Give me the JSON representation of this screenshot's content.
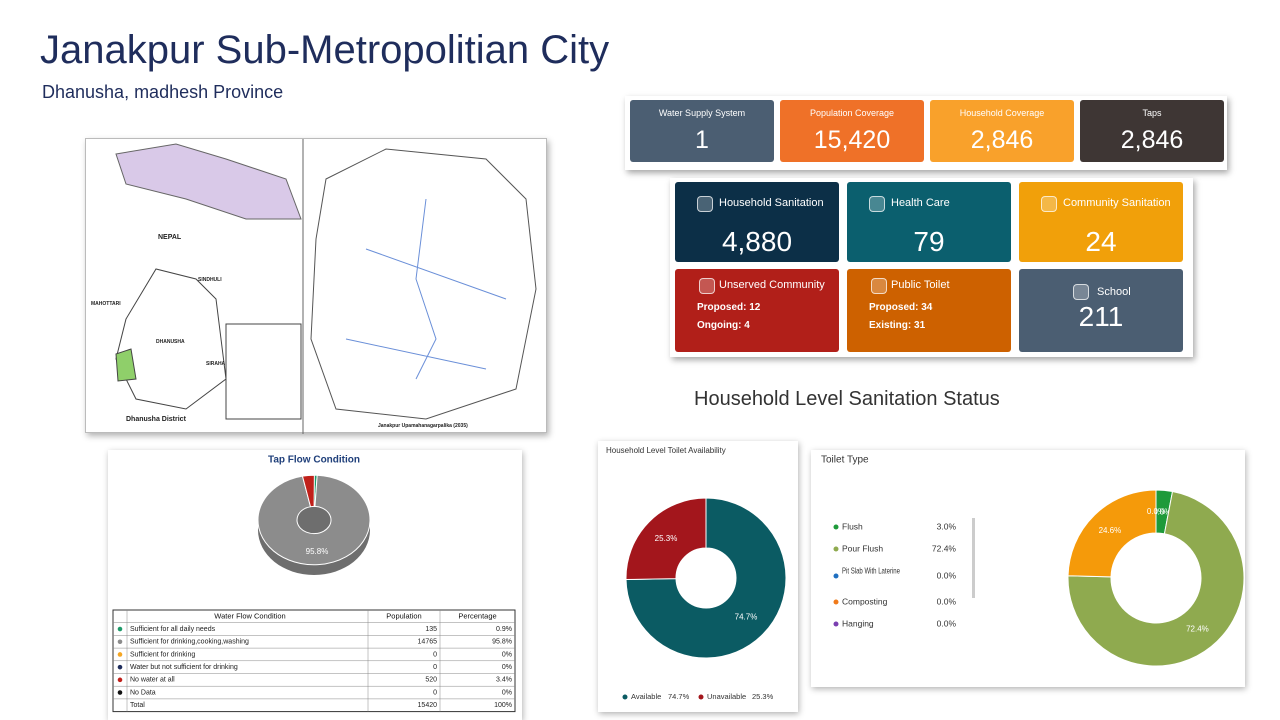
{
  "header": {
    "title": "Janakpur Sub-Metropolitian City",
    "subtitle": "Dhanusha, madhesh Province"
  },
  "water_cards": [
    {
      "label": "Water Supply System",
      "value": "1",
      "color": "#4b5e72"
    },
    {
      "label": "Population Coverage",
      "value": "15,420",
      "color": "#ef7128"
    },
    {
      "label": "Household Coverage",
      "value": "2,846",
      "color": "#f9a12b"
    },
    {
      "label": "Taps",
      "value": "2,846",
      "color": "#3e3634"
    }
  ],
  "sanitation_cards": [
    {
      "label": "Household Sanitation",
      "value": "4,880",
      "color": "#0c2f47"
    },
    {
      "label": "Health Care",
      "value": "79",
      "color": "#0b5f6e"
    },
    {
      "label": "Community Sanitation",
      "value": "24",
      "color": "#f1a00a"
    },
    {
      "label": "Unserved Community",
      "lines": [
        "Proposed: 12",
        "Ongoing: 4"
      ],
      "color": "#b11f19"
    },
    {
      "label": "Public Toilet",
      "lines": [
        "Proposed: 34",
        "Existing: 31"
      ],
      "color": "#cd6100"
    },
    {
      "label": "School",
      "value": "211",
      "color": "#4b5e72"
    }
  ],
  "section_title": "Household Level Sanitation Status",
  "map": {
    "labels": [
      "NEPAL",
      "SINDHULI",
      "MAHOTTARI",
      "DHANUSHA",
      "SIRAHA",
      "Dhanusha District",
      "Janakpur Upamahanagarpalika (2035)"
    ]
  },
  "tap_flow": {
    "title": "Tap Flow Condition",
    "slices": [
      {
        "value": 0.9,
        "color": "#1e9a6a"
      },
      {
        "value": 95.8,
        "color": "#8c8c8c",
        "label": "95.8%"
      },
      {
        "value": 0,
        "color": "#f5a623"
      },
      {
        "value": 0,
        "color": "#1f2d5c"
      },
      {
        "value": 3.4,
        "color": "#c0201a"
      },
      {
        "value": 0,
        "color": "#111111"
      }
    ],
    "table": {
      "header": [
        "Water Flow Condition",
        "Population",
        "Percentage"
      ],
      "rows": [
        [
          "Sufficient for all daily needs",
          "135",
          "0.9%"
        ],
        [
          "Sufficient for drinking,cooking,washing",
          "14765",
          "95.8%"
        ],
        [
          "Sufficient for drinking",
          "0",
          "0%"
        ],
        [
          "Water but not sufficient for drinking",
          "0",
          "0%"
        ],
        [
          "No water at all",
          "520",
          "3.4%"
        ],
        [
          "No Data",
          "0",
          "0%"
        ],
        [
          "Total",
          "15420",
          "100%"
        ]
      ]
    }
  },
  "toilet_availability": {
    "title": "Household Level Toilet Availability",
    "slices": [
      {
        "name": "Available",
        "value": 74.7,
        "label": "74.7%",
        "color": "#0b5b63"
      },
      {
        "name": "Unavailable",
        "value": 25.3,
        "label": "25.3%",
        "color": "#a3161c"
      }
    ]
  },
  "toilet_type": {
    "title": "Toilet Type",
    "legend": [
      {
        "name": "Flush",
        "label": "3.0%",
        "color": "#1e9a3a"
      },
      {
        "name": "Pour Flush",
        "label": "72.4%",
        "color": "#8faa4f"
      },
      {
        "name": "Pit Slab With Laterine",
        "label": "0.0%",
        "color": "#1f6fc0"
      },
      {
        "name": "Composting",
        "label": "0.0%",
        "color": "#f07a1a"
      },
      {
        "name": "Hanging",
        "label": "0.0%",
        "color": "#7a3fb0"
      }
    ],
    "slices": [
      {
        "value": 3.0,
        "label": "3.0%",
        "color": "#1e9a3a"
      },
      {
        "value": 72.4,
        "label": "72.4%",
        "color": "#8faa4f"
      },
      {
        "value": 24.6,
        "label": "24.6%",
        "color": "#f59a0a"
      },
      {
        "value": 0.0,
        "label": "0.0%",
        "color": "#1f6fc0"
      }
    ]
  }
}
